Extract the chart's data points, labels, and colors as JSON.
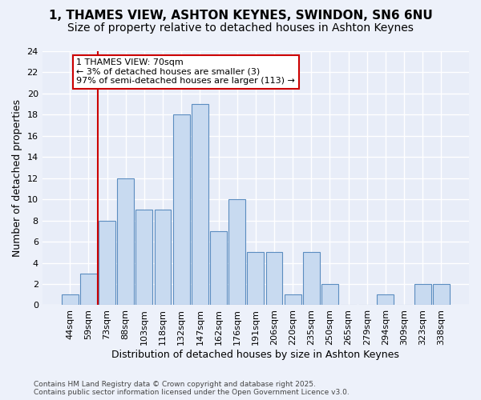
{
  "title_line1": "1, THAMES VIEW, ASHTON KEYNES, SWINDON, SN6 6NU",
  "title_line2": "Size of property relative to detached houses in Ashton Keynes",
  "xlabel": "Distribution of detached houses by size in Ashton Keynes",
  "ylabel": "Number of detached properties",
  "footer": "Contains HM Land Registry data © Crown copyright and database right 2025.\nContains public sector information licensed under the Open Government Licence v3.0.",
  "categories": [
    "44sqm",
    "59sqm",
    "73sqm",
    "88sqm",
    "103sqm",
    "118sqm",
    "132sqm",
    "147sqm",
    "162sqm",
    "176sqm",
    "191sqm",
    "206sqm",
    "220sqm",
    "235sqm",
    "250sqm",
    "265sqm",
    "279sqm",
    "294sqm",
    "309sqm",
    "323sqm",
    "338sqm"
  ],
  "values": [
    1,
    3,
    8,
    12,
    9,
    9,
    18,
    19,
    7,
    10,
    5,
    5,
    1,
    5,
    2,
    0,
    0,
    1,
    0,
    2,
    2
  ],
  "bar_color": "#c8daf0",
  "bar_edge_color": "#5b8dc0",
  "background_color": "#edf1fa",
  "grid_color": "#d0d8e8",
  "plot_bg_color": "#e8edf8",
  "ylim": [
    0,
    24
  ],
  "yticks": [
    0,
    2,
    4,
    6,
    8,
    10,
    12,
    14,
    16,
    18,
    20,
    22,
    24
  ],
  "vline_x": 1.5,
  "annotation_text": "1 THAMES VIEW: 70sqm\n← 3% of detached houses are smaller (3)\n97% of semi-detached houses are larger (113) →",
  "vline_color": "#cc0000",
  "annotation_box_color": "#ffffff",
  "annotation_edge_color": "#cc0000",
  "title_fontsize": 11,
  "subtitle_fontsize": 10,
  "ylabel_fontsize": 9,
  "xlabel_fontsize": 9,
  "tick_fontsize": 8,
  "annotation_fontsize": 8,
  "footer_fontsize": 6.5
}
